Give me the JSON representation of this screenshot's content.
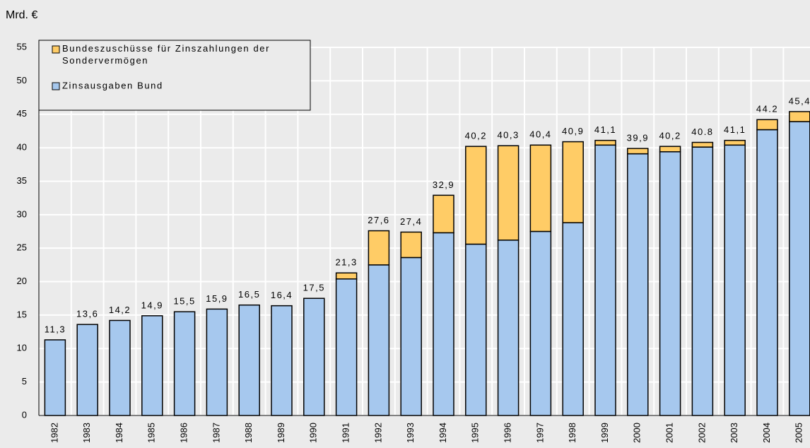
{
  "chart_data": {
    "type": "stacked_bar",
    "y_axis_label": "Mrd. €",
    "categories": [
      "1982",
      "1983",
      "1984",
      "1985",
      "1986",
      "1987",
      "1988",
      "1989",
      "1990",
      "1991",
      "1992",
      "1993",
      "1994",
      "1995",
      "1996",
      "1997",
      "1998",
      "1999",
      "2000",
      "2001",
      "2002",
      "2003",
      "2004",
      "2005"
    ],
    "series": [
      {
        "name": "Zinsausgaben Bund",
        "color": "#a6c8ee",
        "values": [
          11.3,
          13.6,
          14.2,
          14.9,
          15.5,
          15.9,
          16.5,
          16.4,
          17.5,
          20.4,
          22.5,
          23.6,
          27.3,
          25.6,
          26.2,
          27.5,
          28.8,
          40.4,
          39.1,
          39.4,
          40.1,
          40.4,
          42.7,
          43.9
        ]
      },
      {
        "name": "Bundeszuschüsse für Zinszahlungen der Sondervermögen",
        "color": "#ffcc66",
        "values": [
          0,
          0,
          0,
          0,
          0,
          0,
          0,
          0,
          0,
          0.9,
          5.1,
          3.8,
          5.6,
          14.6,
          14.1,
          12.9,
          12.1,
          0.7,
          0.8,
          0.8,
          0.7,
          0.7,
          1.5,
          1.5
        ]
      }
    ],
    "totals": [
      11.3,
      13.6,
      14.2,
      14.9,
      15.5,
      15.9,
      16.5,
      16.4,
      17.5,
      21.3,
      27.6,
      27.4,
      32.9,
      40.2,
      40.3,
      40.4,
      40.9,
      41.1,
      39.9,
      40.2,
      40.8,
      41.1,
      44.2,
      45.4
    ],
    "total_labels": [
      "11,3",
      "13,6",
      "14,2",
      "14,9",
      "15,5",
      "15,9",
      "16,5",
      "16,4",
      "17,5",
      "21,3",
      "27,6",
      "27,4",
      "32,9",
      "40,2",
      "40,3",
      "40,4",
      "40,9",
      "41,1",
      "39,9",
      "40,2",
      "40.8",
      "41,1",
      "44.2",
      "45,4"
    ],
    "ylim": [
      0,
      55
    ],
    "yticks": [
      0,
      5,
      10,
      15,
      20,
      25,
      30,
      35,
      40,
      45,
      50,
      55
    ],
    "grid": true,
    "legend": "top-left"
  }
}
